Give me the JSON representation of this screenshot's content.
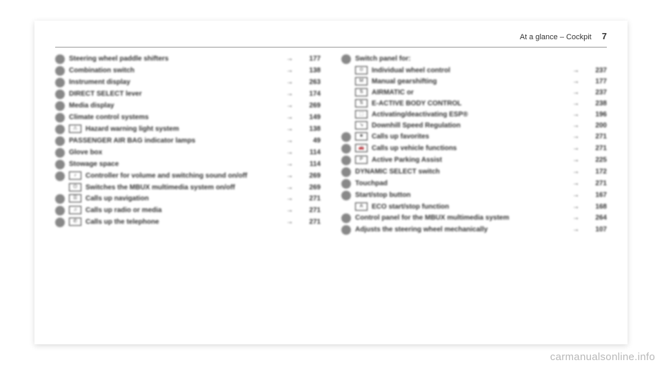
{
  "header": {
    "title": "At a glance – Cockpit",
    "page_number": "7"
  },
  "left_column": [
    {
      "type": "main",
      "label": "Steering wheel paddle shifters",
      "ref": "177"
    },
    {
      "type": "main",
      "label": "Combination switch",
      "ref": "138"
    },
    {
      "type": "main",
      "label": "Instrument display",
      "ref": "263"
    },
    {
      "type": "main",
      "label": "DIRECT SELECT lever",
      "ref": "174"
    },
    {
      "type": "main",
      "label": "Media display",
      "ref": "269"
    },
    {
      "type": "main",
      "label": "Climate control systems",
      "ref": "149"
    },
    {
      "type": "main",
      "icon": "⚠",
      "label": "Hazard warning light system",
      "ref": "138"
    },
    {
      "type": "main",
      "label": "PASSENGER AIR BAG indicator lamps",
      "ref": "49"
    },
    {
      "type": "main",
      "label": "Glove box",
      "ref": "114"
    },
    {
      "type": "main",
      "label": "Stowage space",
      "ref": "114"
    },
    {
      "type": "main",
      "icon": "♪",
      "label": "Controller for volume and switching sound on/off",
      "ref": "269"
    },
    {
      "type": "sub",
      "icon": "⏻",
      "label": "Switches the MBUX multimedia system on/off",
      "ref": "269"
    },
    {
      "type": "main",
      "icon": "☰",
      "label": "Calls up navigation",
      "ref": "271"
    },
    {
      "type": "main",
      "icon": "♫",
      "label": "Calls up radio or media",
      "ref": "271"
    },
    {
      "type": "main",
      "icon": "✆",
      "label": "Calls up the telephone",
      "ref": "271"
    }
  ],
  "right_column": [
    {
      "type": "main",
      "label": "Switch panel for:",
      "ref": ""
    },
    {
      "type": "sub",
      "icon": "⊙",
      "label": "Individual wheel control",
      "ref": "237"
    },
    {
      "type": "sub",
      "icon": "M",
      "label": "Manual gearshifting",
      "ref": "177"
    },
    {
      "type": "sub",
      "icon": "⇅",
      "label": "AIRMATIC or",
      "ref": "237"
    },
    {
      "type": "sub",
      "icon": "⇅",
      "label": "E-ACTIVE BODY CONTROL",
      "ref": "238"
    },
    {
      "type": "sub",
      "icon": "⬚",
      "label": "Activating/deactivating ESP®",
      "ref": "196"
    },
    {
      "type": "sub",
      "icon": "↘",
      "label": "Downhill Speed Regulation",
      "ref": "200"
    },
    {
      "type": "main",
      "icon": "★",
      "label": "Calls up favorites",
      "ref": "271"
    },
    {
      "type": "main",
      "icon": "🚗",
      "label": "Calls up vehicle functions",
      "ref": "271"
    },
    {
      "type": "main",
      "icon": "P",
      "label": "Active Parking Assist",
      "ref": "225"
    },
    {
      "type": "main",
      "label": "DYNAMIC SELECT switch",
      "ref": "172"
    },
    {
      "type": "main",
      "label": "Touchpad",
      "ref": "271"
    },
    {
      "type": "main",
      "label": "Start/stop button",
      "ref": "167"
    },
    {
      "type": "sub",
      "icon": "A",
      "label": "ECO start/stop function",
      "ref": "168"
    },
    {
      "type": "main",
      "label": "Control panel for the MBUX multimedia system",
      "ref": "264"
    },
    {
      "type": "main",
      "label": "Adjusts the steering wheel mechanically",
      "ref": "107"
    }
  ],
  "watermark": "carmanualsonline.info",
  "arrow_glyph": "→"
}
